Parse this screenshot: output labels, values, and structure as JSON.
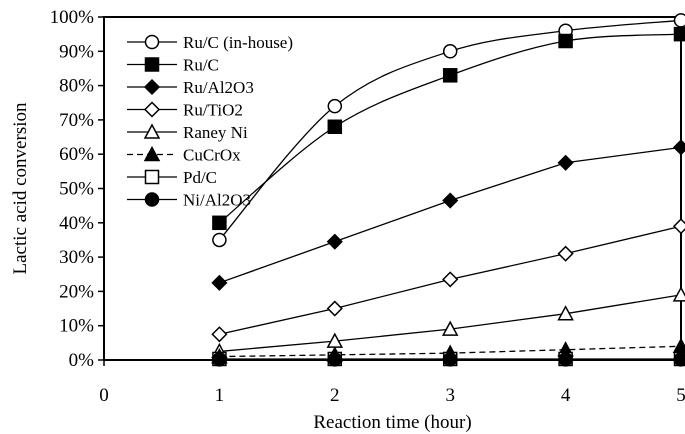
{
  "chart_data": {
    "type": "line",
    "xlabel": "Reaction time (hour)",
    "ylabel": "Lactic acid conversion",
    "xlim": [
      0,
      5
    ],
    "ylim": [
      0,
      100
    ],
    "x_ticks": [
      "0",
      "1",
      "2",
      "3",
      "4",
      "5"
    ],
    "y_ticks": [
      "0%",
      "10%",
      "20%",
      "30%",
      "40%",
      "50%",
      "60%",
      "70%",
      "80%",
      "90%",
      "100%"
    ],
    "grid": false,
    "legend_position": "top-left",
    "x": [
      1,
      2,
      3,
      4,
      5
    ],
    "series": [
      {
        "name": "Ru/C (in-house)",
        "marker": "circle-open",
        "line": "solid-smooth",
        "values": [
          35,
          74,
          90,
          96,
          99
        ]
      },
      {
        "name": "Ru/C",
        "marker": "square-filled",
        "line": "solid-smooth",
        "values": [
          40,
          68,
          83,
          93,
          95
        ]
      },
      {
        "name": "Ru/Al2O3",
        "marker": "diamond-filled",
        "line": "solid",
        "values": [
          22.5,
          34.5,
          46.5,
          57.5,
          62
        ]
      },
      {
        "name": " Ru/TiO2",
        "marker": "diamond-open",
        "line": "solid",
        "values": [
          7.5,
          15,
          23.5,
          31,
          39
        ]
      },
      {
        "name": "Raney Ni",
        "marker": "triangle-open",
        "line": "solid",
        "values": [
          2.5,
          5.5,
          9,
          13.5,
          19
        ]
      },
      {
        "name": "CuCrOx",
        "marker": "triangle-filled",
        "line": "dashed",
        "values": [
          1,
          1.5,
          2,
          3,
          4
        ]
      },
      {
        "name": "Pd/C",
        "marker": "square-open",
        "line": "solid",
        "values": [
          0.3,
          0.3,
          0.3,
          0.3,
          0.3
        ]
      },
      {
        "name": "Ni/Al2O3",
        "marker": "circle-filled",
        "line": "solid",
        "values": [
          0.2,
          0.2,
          0.2,
          0.2,
          0.2
        ]
      }
    ]
  }
}
